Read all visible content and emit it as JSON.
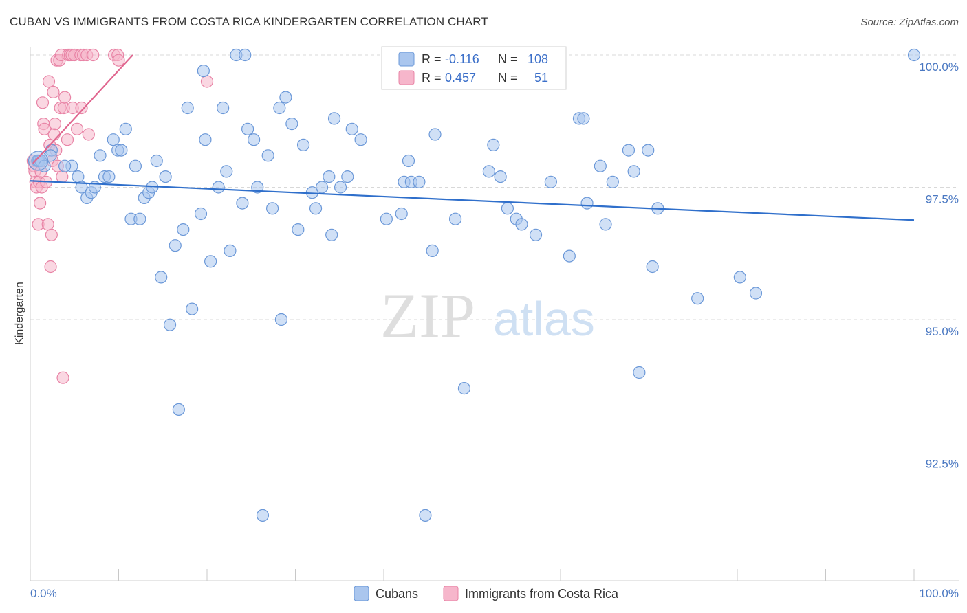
{
  "title": "CUBAN VS IMMIGRANTS FROM COSTA RICA KINDERGARTEN CORRELATION CHART",
  "source": "Source: ZipAtlas.com",
  "watermark": {
    "zip": "ZIP",
    "atlas": "atlas"
  },
  "colors": {
    "blue_fill": "#aac6ee",
    "blue_stroke": "#6b98d8",
    "blue_line": "#2f6fcb",
    "pink_fill": "#f6b6cb",
    "pink_stroke": "#e883a5",
    "pink_line": "#e0668f",
    "grid": "#d8d8d8",
    "tick_text": "#4a78c2"
  },
  "legend": {
    "rows": [
      {
        "r_label": "R =",
        "r_value": "-0.116",
        "n_label": "N =",
        "n_value": "108"
      },
      {
        "r_label": "R =",
        "r_value": "0.457",
        "n_label": "N =",
        "n_value": "51"
      }
    ]
  },
  "chart_data": {
    "type": "scatter",
    "title": "CUBAN VS IMMIGRANTS FROM COSTA RICA KINDERGARTEN CORRELATION CHART",
    "xlabel": "",
    "ylabel": "Kindergarten",
    "xlim": [
      0,
      100
    ],
    "ylim": [
      90.2,
      100.35
    ],
    "x_tick_labels": [
      "0.0%",
      "100.0%"
    ],
    "y_ticks": [
      {
        "value": 100.0,
        "label": "100.0%"
      },
      {
        "value": 97.5,
        "label": "97.5%"
      },
      {
        "value": 95.0,
        "label": "95.0%"
      },
      {
        "value": 92.5,
        "label": "92.5%"
      }
    ],
    "series": [
      {
        "name": "Cubans",
        "color": "#aac6ee",
        "trend": {
          "x": [
            0,
            100
          ],
          "y": [
            97.62,
            96.88
          ]
        },
        "points": [
          [
            0.8,
            98.0
          ],
          [
            0.9,
            98.0
          ],
          [
            1.0,
            98.0
          ],
          [
            1.2,
            98.0
          ],
          [
            1.6,
            97.9
          ],
          [
            2.4,
            98.2
          ],
          [
            2.3,
            98.1
          ],
          [
            4.7,
            97.9
          ],
          [
            3.9,
            97.9
          ],
          [
            5.4,
            97.7
          ],
          [
            5.8,
            97.5
          ],
          [
            6.4,
            97.3
          ],
          [
            6.9,
            97.4
          ],
          [
            7.3,
            97.5
          ],
          [
            7.9,
            98.1
          ],
          [
            8.4,
            97.7
          ],
          [
            8.9,
            97.7
          ],
          [
            9.4,
            98.4
          ],
          [
            9.9,
            98.2
          ],
          [
            10.3,
            98.2
          ],
          [
            10.8,
            98.6
          ],
          [
            11.4,
            96.9
          ],
          [
            11.9,
            97.9
          ],
          [
            12.4,
            96.9
          ],
          [
            12.9,
            97.3
          ],
          [
            13.4,
            97.4
          ],
          [
            13.8,
            97.5
          ],
          [
            14.3,
            98.0
          ],
          [
            14.8,
            95.8
          ],
          [
            15.3,
            97.7
          ],
          [
            15.8,
            94.9
          ],
          [
            16.4,
            96.4
          ],
          [
            16.8,
            93.3
          ],
          [
            17.3,
            96.7
          ],
          [
            17.8,
            99.0
          ],
          [
            18.3,
            95.2
          ],
          [
            19.3,
            97.0
          ],
          [
            19.6,
            99.7
          ],
          [
            19.8,
            98.4
          ],
          [
            20.4,
            96.1
          ],
          [
            21.3,
            97.5
          ],
          [
            21.8,
            99.0
          ],
          [
            22.2,
            97.8
          ],
          [
            22.6,
            96.3
          ],
          [
            23.3,
            100.0
          ],
          [
            24.0,
            97.2
          ],
          [
            24.3,
            100.0
          ],
          [
            24.6,
            98.6
          ],
          [
            25.3,
            98.4
          ],
          [
            25.7,
            97.5
          ],
          [
            26.3,
            91.3
          ],
          [
            26.9,
            98.1
          ],
          [
            27.4,
            97.1
          ],
          [
            28.2,
            99.0
          ],
          [
            28.4,
            95.0
          ],
          [
            28.9,
            99.2
          ],
          [
            29.6,
            98.7
          ],
          [
            30.3,
            96.7
          ],
          [
            30.9,
            98.3
          ],
          [
            31.9,
            97.4
          ],
          [
            32.3,
            97.1
          ],
          [
            33.0,
            97.5
          ],
          [
            33.8,
            97.7
          ],
          [
            34.1,
            96.6
          ],
          [
            34.4,
            98.8
          ],
          [
            35.1,
            97.5
          ],
          [
            35.9,
            97.7
          ],
          [
            36.4,
            98.6
          ],
          [
            37.4,
            98.4
          ],
          [
            40.3,
            96.9
          ],
          [
            42.0,
            97.0
          ],
          [
            42.3,
            97.6
          ],
          [
            42.8,
            98.0
          ],
          [
            43.1,
            97.6
          ],
          [
            44.0,
            97.6
          ],
          [
            44.7,
            91.3
          ],
          [
            45.5,
            96.3
          ],
          [
            45.8,
            98.5
          ],
          [
            48.1,
            96.9
          ],
          [
            49.1,
            93.7
          ],
          [
            51.9,
            97.8
          ],
          [
            52.4,
            98.3
          ],
          [
            53.2,
            97.7
          ],
          [
            54.0,
            97.1
          ],
          [
            55.0,
            96.9
          ],
          [
            55.6,
            96.8
          ],
          [
            57.2,
            96.6
          ],
          [
            58.9,
            97.6
          ],
          [
            61.0,
            96.2
          ],
          [
            62.1,
            98.8
          ],
          [
            62.6,
            98.8
          ],
          [
            63.0,
            97.2
          ],
          [
            64.5,
            97.9
          ],
          [
            65.1,
            96.8
          ],
          [
            65.9,
            97.6
          ],
          [
            67.7,
            98.2
          ],
          [
            68.3,
            97.8
          ],
          [
            68.9,
            94.0
          ],
          [
            69.9,
            98.2
          ],
          [
            70.4,
            96.0
          ],
          [
            71.0,
            97.1
          ],
          [
            75.5,
            95.4
          ],
          [
            80.3,
            95.8
          ],
          [
            82.1,
            95.5
          ],
          [
            100.0,
            100.0
          ]
        ]
      },
      {
        "name": "Immigrants from Costa Rica",
        "color": "#f6b6cb",
        "trend": {
          "x": [
            0.3,
            11.6
          ],
          "y": [
            97.95,
            100.0
          ]
        },
        "points": [
          [
            0.3,
            98.0
          ],
          [
            0.4,
            97.9
          ],
          [
            0.5,
            97.8
          ],
          [
            0.6,
            97.6
          ],
          [
            0.7,
            97.5
          ],
          [
            0.8,
            98.0
          ],
          [
            0.9,
            96.8
          ],
          [
            1.0,
            97.6
          ],
          [
            1.1,
            97.2
          ],
          [
            1.2,
            97.8
          ],
          [
            1.3,
            97.5
          ],
          [
            1.4,
            99.1
          ],
          [
            1.5,
            98.7
          ],
          [
            1.6,
            98.6
          ],
          [
            1.8,
            97.6
          ],
          [
            2.0,
            96.8
          ],
          [
            2.1,
            99.5
          ],
          [
            2.2,
            98.3
          ],
          [
            2.3,
            96.0
          ],
          [
            2.4,
            96.6
          ],
          [
            2.5,
            98.0
          ],
          [
            2.6,
            99.3
          ],
          [
            2.7,
            98.5
          ],
          [
            2.8,
            98.7
          ],
          [
            2.9,
            98.2
          ],
          [
            3.0,
            99.9
          ],
          [
            3.1,
            97.9
          ],
          [
            3.3,
            99.9
          ],
          [
            3.4,
            99.0
          ],
          [
            3.5,
            100.0
          ],
          [
            3.6,
            97.7
          ],
          [
            3.7,
            93.9
          ],
          [
            3.8,
            99.0
          ],
          [
            3.9,
            99.2
          ],
          [
            4.2,
            98.4
          ],
          [
            4.3,
            100.0
          ],
          [
            4.5,
            100.0
          ],
          [
            4.7,
            100.0
          ],
          [
            4.8,
            99.0
          ],
          [
            5.0,
            100.0
          ],
          [
            5.3,
            98.6
          ],
          [
            5.7,
            100.0
          ],
          [
            5.8,
            99.0
          ],
          [
            6.0,
            100.0
          ],
          [
            6.4,
            100.0
          ],
          [
            6.6,
            98.5
          ],
          [
            7.1,
            100.0
          ],
          [
            9.5,
            100.0
          ],
          [
            9.9,
            100.0
          ],
          [
            10.0,
            99.9
          ],
          [
            20.0,
            99.5
          ]
        ]
      }
    ],
    "legend_position": "top-center"
  },
  "bottom_legend": {
    "items": [
      "Cubans",
      "Immigrants from Costa Rica"
    ]
  }
}
